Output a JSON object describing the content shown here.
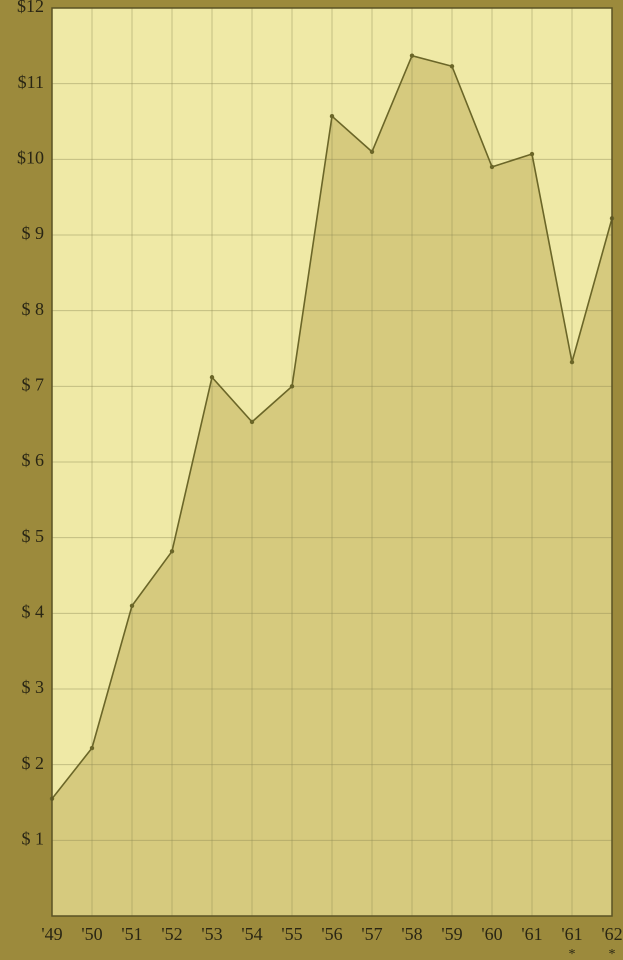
{
  "chart_data": {
    "type": "area",
    "categories": [
      "'49",
      "'50",
      "'51",
      "'52",
      "'53",
      "'54",
      "'55",
      "'56",
      "'57",
      "'58",
      "'59",
      "'60",
      "'61",
      "'61",
      "'62"
    ],
    "category_marks": [
      null,
      null,
      null,
      null,
      null,
      null,
      null,
      null,
      null,
      null,
      null,
      null,
      null,
      "*",
      "*"
    ],
    "values": [
      1.55,
      2.22,
      4.1,
      4.82,
      7.12,
      6.53,
      7.0,
      10.57,
      10.1,
      11.37,
      11.23,
      9.9,
      10.07,
      7.32,
      9.22
    ],
    "color": "#6b6628",
    "fill_color": "#d6ca7e",
    "background_color": "#efe9a6",
    "ylim": [
      0,
      12
    ],
    "yticks": [
      {
        "value": 1,
        "label": "$ 1"
      },
      {
        "value": 2,
        "label": "$ 2"
      },
      {
        "value": 3,
        "label": "$ 3"
      },
      {
        "value": 4,
        "label": "$ 4"
      },
      {
        "value": 5,
        "label": "$ 5"
      },
      {
        "value": 6,
        "label": "$ 6"
      },
      {
        "value": 7,
        "label": "$ 7"
      },
      {
        "value": 8,
        "label": "$ 8"
      },
      {
        "value": 9,
        "label": "$ 9"
      },
      {
        "value": 10,
        "label": "$10"
      },
      {
        "value": 11,
        "label": "$11"
      },
      {
        "value": 12,
        "label": "$12"
      }
    ],
    "grid": true
  }
}
